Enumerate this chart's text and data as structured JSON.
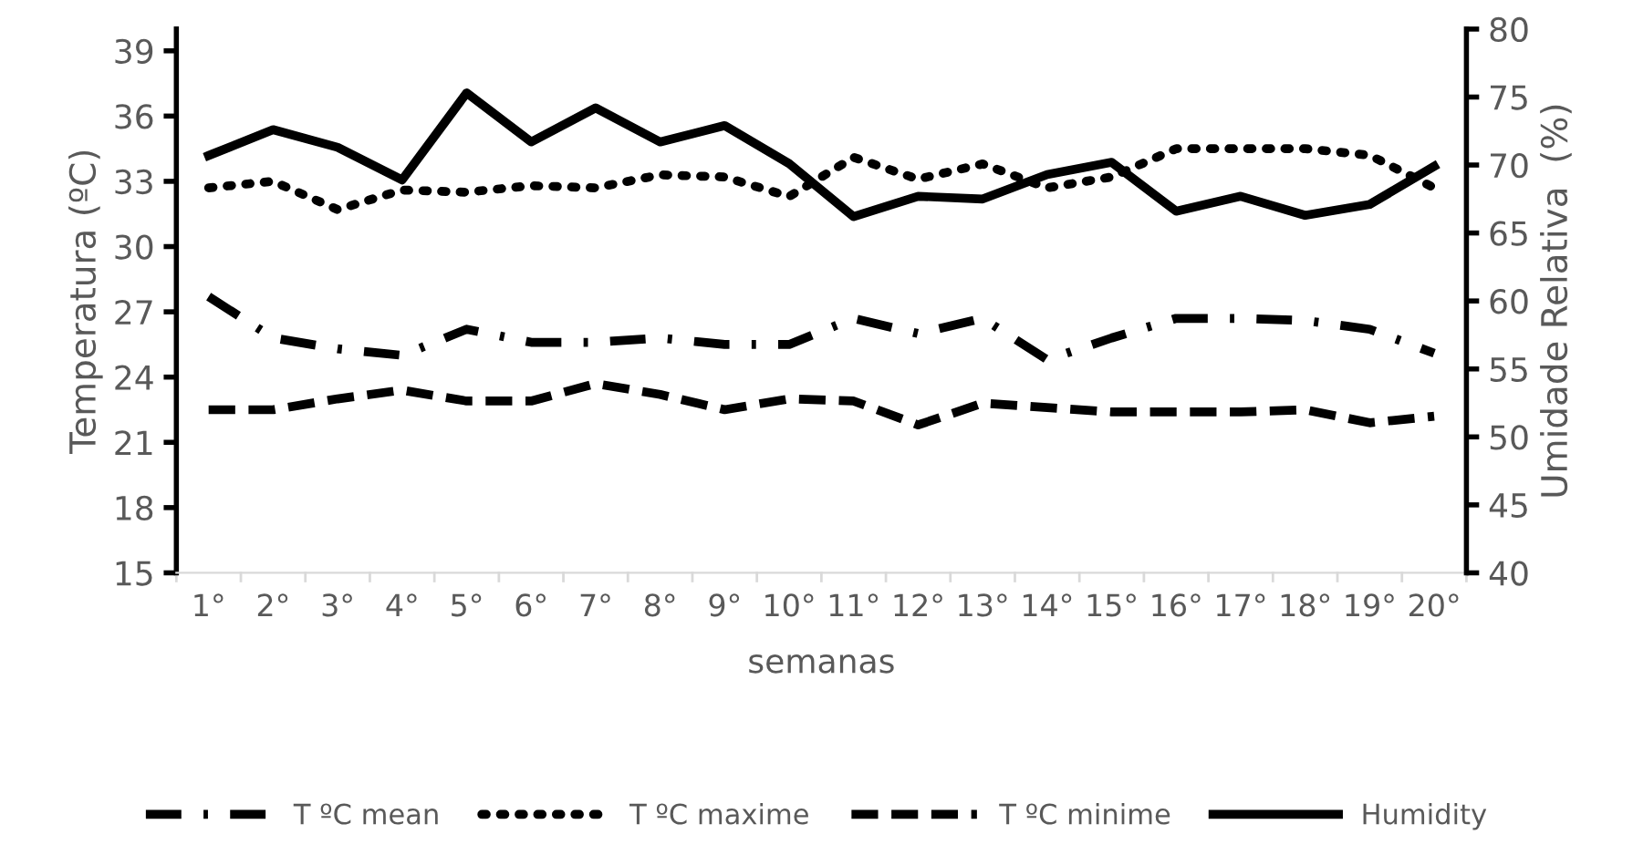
{
  "chart_data": {
    "type": "line",
    "xlabel": "semanas",
    "ylabel": "Temperatura (ºC)",
    "y2label": "Umidade Relativa  (%)",
    "categories": [
      "1°",
      "2°",
      "3°",
      "4°",
      "5°",
      "6°",
      "7°",
      "8°",
      "9°",
      "10°",
      "11°",
      "12°",
      "13°",
      "14°",
      "15°",
      "16°",
      "17°",
      "18°",
      "19°",
      "20°"
    ],
    "ylim": [
      15,
      40
    ],
    "yticks": [
      15,
      18,
      21,
      24,
      27,
      30,
      33,
      36,
      39
    ],
    "y2lim": [
      40,
      80
    ],
    "y2ticks": [
      40,
      45,
      50,
      55,
      60,
      65,
      70,
      75,
      80
    ],
    "grid": false,
    "legend": "bottom",
    "marker": "none",
    "series": [
      {
        "name": "T ºC mean",
        "color": "#000000",
        "line_style": "dashdot",
        "values": [
          27.7,
          25.8,
          25.3,
          25.0,
          26.2,
          25.6,
          25.6,
          25.8,
          25.5,
          25.5,
          26.7,
          26.0,
          26.7,
          24.8,
          25.8,
          26.7,
          26.7,
          26.6,
          26.2,
          25.1
        ]
      },
      {
        "name": "T ºC maxime",
        "color": "#000000",
        "line_style": "dotted",
        "values": [
          32.7,
          33.0,
          31.7,
          32.6,
          32.5,
          32.8,
          32.7,
          33.3,
          33.2,
          32.3,
          34.1,
          33.1,
          33.8,
          32.7,
          33.2,
          34.5,
          34.5,
          34.5,
          34.2,
          32.7
        ]
      },
      {
        "name": "T ºC minime",
        "color": "#000000",
        "line_style": "dashed",
        "values": [
          22.5,
          22.5,
          23.0,
          23.4,
          22.9,
          22.9,
          23.7,
          23.2,
          22.5,
          23.0,
          22.9,
          21.8,
          22.8,
          22.6,
          22.4,
          22.4,
          22.4,
          22.5,
          21.9,
          22.2
        ]
      },
      {
        "name": "Humidity",
        "color": "#000000",
        "line_style": "solid",
        "axis": "y2",
        "values": [
          70.7,
          72.6,
          71.3,
          68.9,
          75.3,
          71.7,
          74.2,
          71.7,
          72.9,
          70.1,
          66.2,
          67.7,
          67.5,
          69.3,
          70.2,
          66.6,
          67.7,
          66.3,
          67.1,
          69.9
        ]
      }
    ]
  }
}
